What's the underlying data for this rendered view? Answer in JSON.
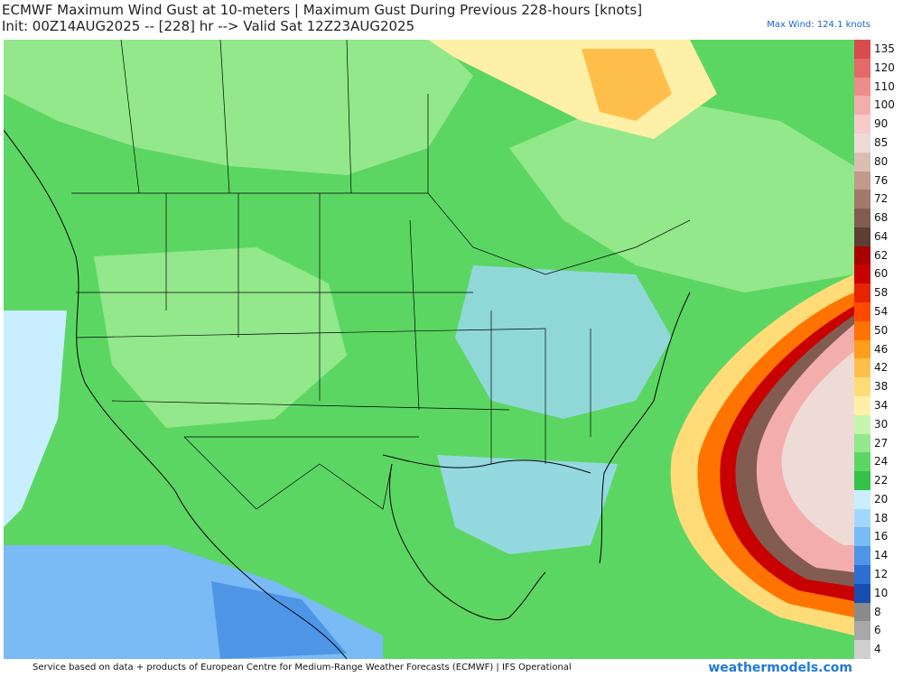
{
  "header": {
    "title_line1": "ECMWF Maximum Wind Gust at 10-meters | Maximum Gust During Previous 228-hours [knots]",
    "title_line2": "Init: 00Z14AUG2025 -- [228] hr --> Valid Sat 12Z23AUG2025",
    "max_wind": "Max Wind: 124.1 knots"
  },
  "legend": {
    "items": [
      {
        "label": "135",
        "color": "#d94c4c"
      },
      {
        "label": "120",
        "color": "#e46a6a"
      },
      {
        "label": "110",
        "color": "#ee8c8c"
      },
      {
        "label": "100",
        "color": "#f4adad"
      },
      {
        "label": "90",
        "color": "#f8caca"
      },
      {
        "label": "85",
        "color": "#eedbd6"
      },
      {
        "label": "80",
        "color": "#dcbdb2"
      },
      {
        "label": "76",
        "color": "#c29a8c"
      },
      {
        "label": "72",
        "color": "#a27a6c"
      },
      {
        "label": "68",
        "color": "#825c50"
      },
      {
        "label": "64",
        "color": "#5e3e34"
      },
      {
        "label": "62",
        "color": "#a80000"
      },
      {
        "label": "60",
        "color": "#c80000"
      },
      {
        "label": "58",
        "color": "#e62400"
      },
      {
        "label": "54",
        "color": "#ff4a00"
      },
      {
        "label": "50",
        "color": "#ff7400"
      },
      {
        "label": "46",
        "color": "#ff9d1c"
      },
      {
        "label": "42",
        "color": "#ffbf4a"
      },
      {
        "label": "38",
        "color": "#ffdc78"
      },
      {
        "label": "34",
        "color": "#fff0a8"
      },
      {
        "label": "30",
        "color": "#c6f5b0"
      },
      {
        "label": "27",
        "color": "#92e88a"
      },
      {
        "label": "24",
        "color": "#5cd663"
      },
      {
        "label": "22",
        "color": "#34c248"
      },
      {
        "label": "20",
        "color": "#c8eeff"
      },
      {
        "label": "18",
        "color": "#a2d8ff"
      },
      {
        "label": "16",
        "color": "#7abaf5"
      },
      {
        "label": "14",
        "color": "#4e95e6"
      },
      {
        "label": "12",
        "color": "#2c6fd2"
      },
      {
        "label": "10",
        "color": "#164fb0"
      },
      {
        "label": "8",
        "color": "#8a8a8a"
      },
      {
        "label": "6",
        "color": "#a8a8a8"
      },
      {
        "label": "4",
        "color": "#cfcfcf"
      }
    ]
  },
  "footer": {
    "credit": "Service based on data + products of European Centre for Medium-Range Weather Forecasts (ECMWF) | IFS Operational",
    "brand": "weathermodels.com"
  }
}
